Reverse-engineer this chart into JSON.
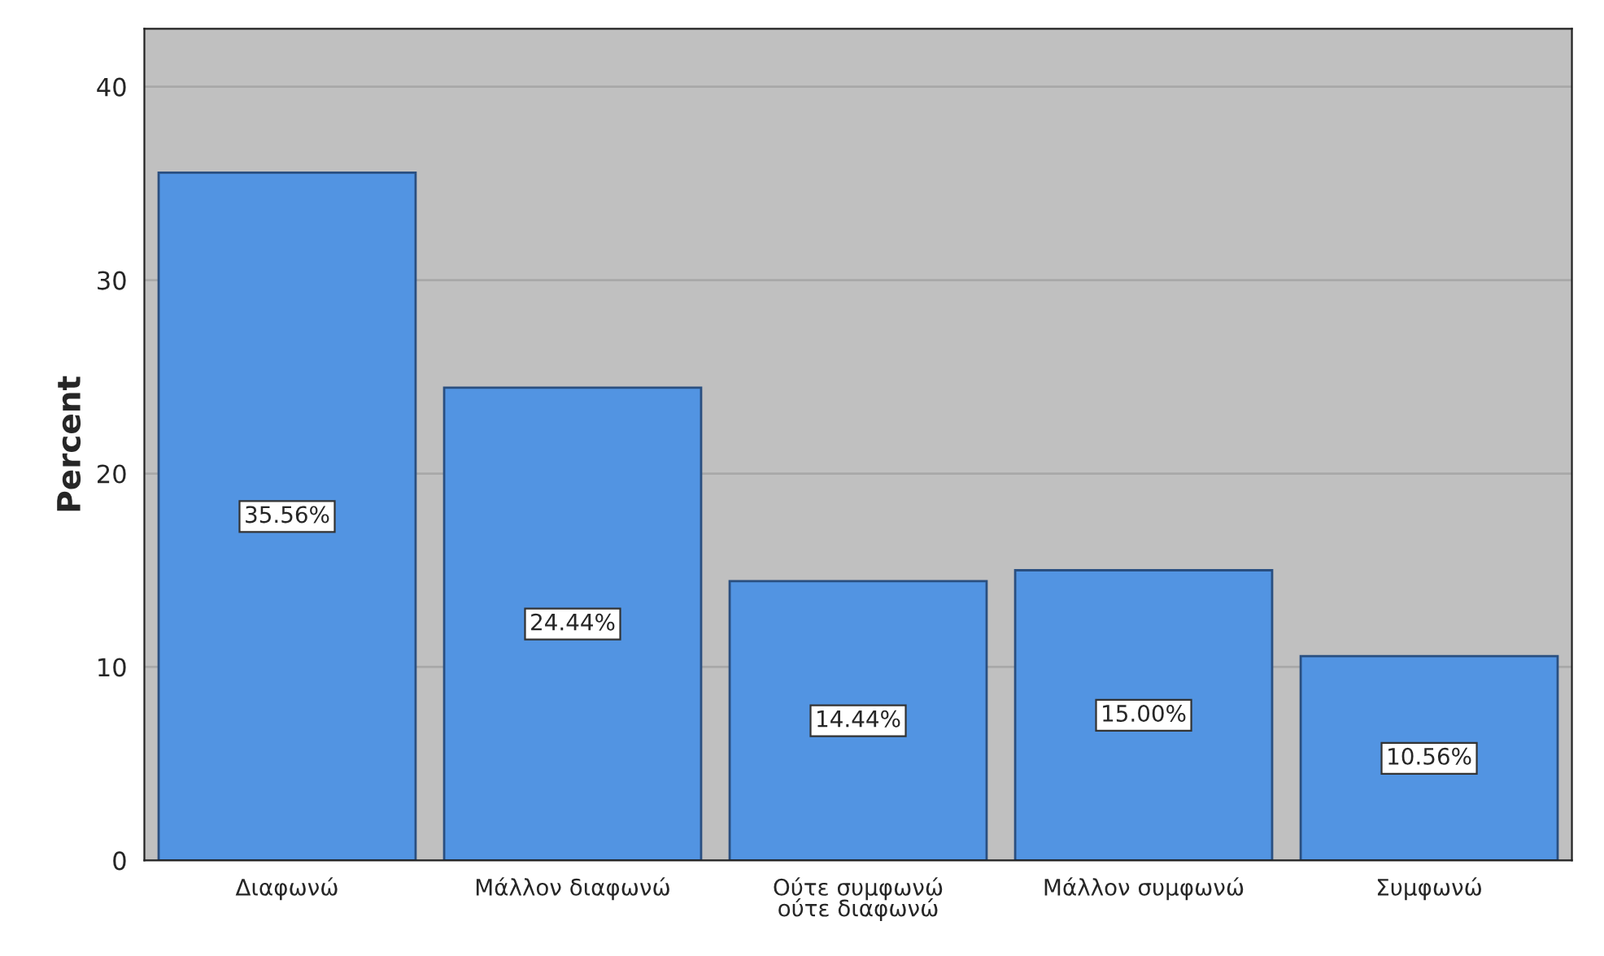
{
  "chart_data": {
    "type": "bar",
    "ylabel": "Percent",
    "categories": [
      "Διαφωνώ",
      "Μάλλον διαφωνώ",
      "Ούτε συμφωνώ\nούτε διαφωνώ",
      "Μάλλον συμφωνώ",
      "Συμφωνώ"
    ],
    "values": [
      35.56,
      24.44,
      14.44,
      15.0,
      10.56
    ],
    "value_labels": [
      "35.56%",
      "24.44%",
      "14.44%",
      "15.00%",
      "10.56%"
    ],
    "color": "#5294e2",
    "ylim": [
      0,
      43
    ],
    "yticks": [
      0,
      10,
      20,
      30,
      40
    ],
    "grid": "y"
  }
}
